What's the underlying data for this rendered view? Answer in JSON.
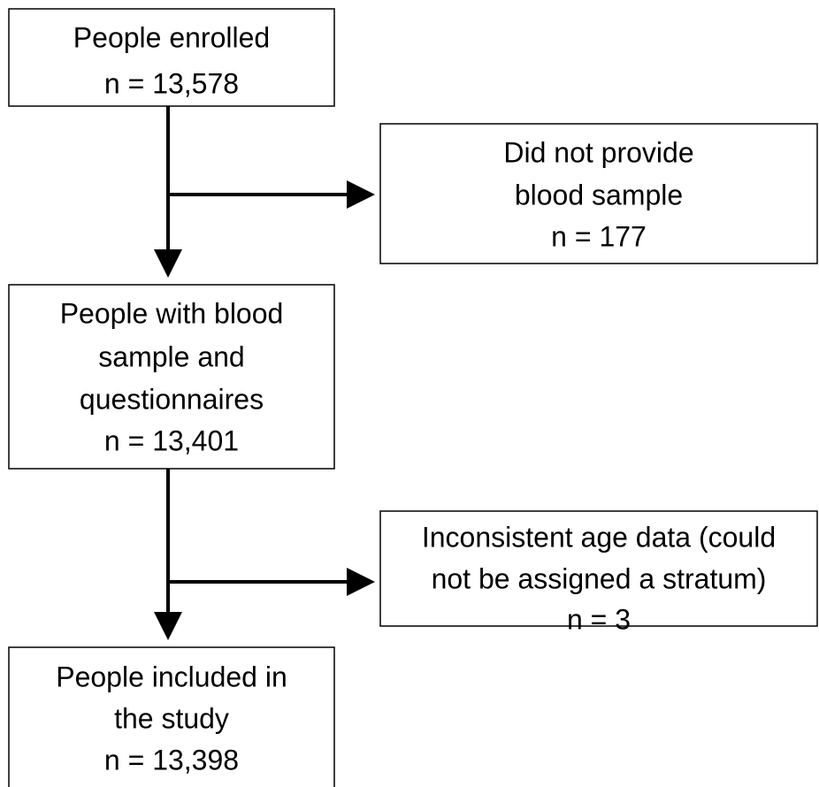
{
  "nodes": [
    {
      "lines": [
        "People enrolled",
        "n = 13,578"
      ]
    },
    {
      "lines": [
        "Did not provide",
        "blood sample",
        "n = 177"
      ]
    },
    {
      "lines": [
        "People with blood",
        "sample and",
        "questionnaires",
        "n = 13,401"
      ]
    },
    {
      "lines": [
        "Inconsistent age data (could",
        "not be assigned a stratum)",
        "n = 3"
      ]
    },
    {
      "lines": [
        "People included in",
        "the study",
        "n = 13,398"
      ]
    }
  ]
}
